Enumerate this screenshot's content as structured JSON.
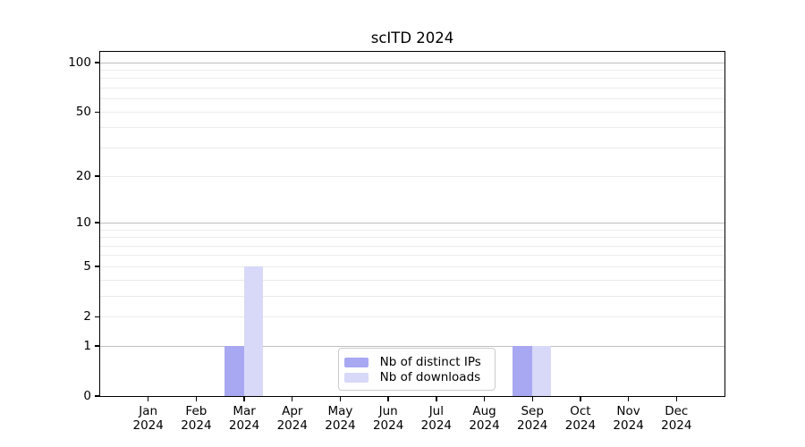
{
  "chart_data": {
    "type": "bar",
    "title": "scITD 2024",
    "categories": [
      "Jan 2024",
      "Feb 2024",
      "Mar 2024",
      "Apr 2024",
      "May 2024",
      "Jun 2024",
      "Jul 2024",
      "Aug 2024",
      "Sep 2024",
      "Oct 2024",
      "Nov 2024",
      "Dec 2024"
    ],
    "series": [
      {
        "name": "Nb of distinct IPs",
        "color": "#a8a8f2",
        "values": [
          0,
          0,
          1,
          0,
          0,
          0,
          0,
          0,
          1,
          0,
          0,
          0
        ]
      },
      {
        "name": "Nb of downloads",
        "color": "#d8d8f8",
        "values": [
          0,
          0,
          5,
          0,
          0,
          0,
          0,
          0,
          1,
          0,
          0,
          0
        ]
      }
    ],
    "xlabel": "",
    "ylabel": "",
    "yscale": "log1p",
    "ylim": [
      0,
      100
    ],
    "yticks": [
      0,
      1,
      2,
      5,
      10,
      20,
      50,
      100
    ],
    "grid_major": [
      1,
      10,
      100
    ],
    "grid_minor": [
      2,
      3,
      4,
      5,
      6,
      7,
      8,
      9,
      20,
      30,
      40,
      50,
      60,
      70,
      80,
      90
    ],
    "grid": "on",
    "legend_position": "lower center inside",
    "style": {
      "background": "#ffffff",
      "spine_color": "#000000",
      "grid_major_color": "#bdbdbd",
      "grid_minor_color": "#ebebeb",
      "legend_border_color": "#cccccc"
    }
  }
}
